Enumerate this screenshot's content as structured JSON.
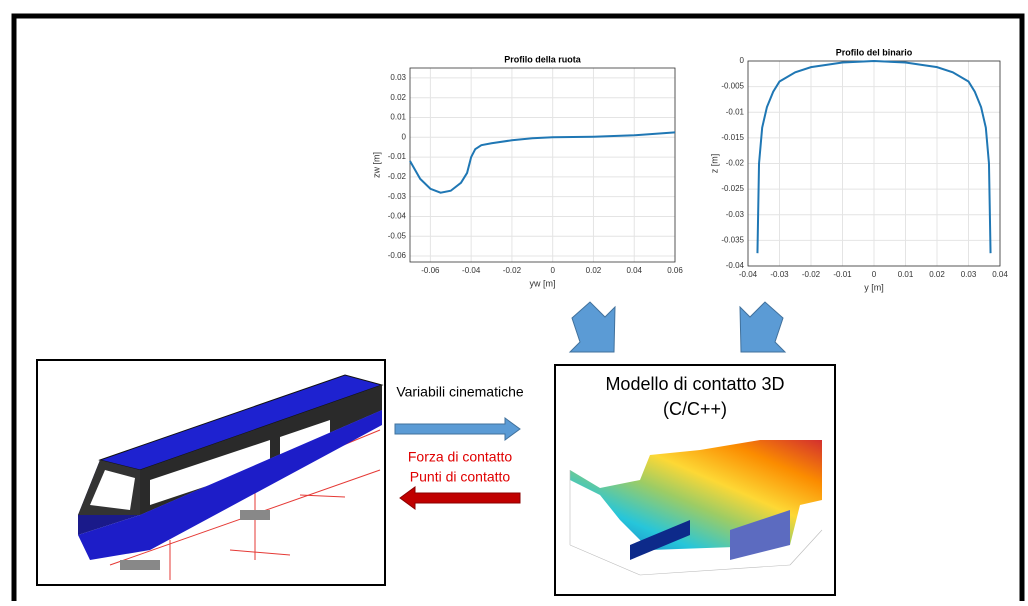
{
  "chart_data": [
    {
      "type": "line",
      "title": "Profilo della ruota",
      "x_label": "yw [m]",
      "y_label": "zw [m]",
      "x": [
        -0.07,
        -0.065,
        -0.06,
        -0.055,
        -0.05,
        -0.045,
        -0.042,
        -0.04,
        -0.038,
        -0.035,
        -0.03,
        -0.02,
        -0.01,
        0,
        0.02,
        0.04,
        0.06
      ],
      "series": [
        {
          "color": "#1f77b4",
          "values": [
            -0.012,
            -0.021,
            -0.026,
            -0.028,
            -0.027,
            -0.023,
            -0.018,
            -0.01,
            -0.006,
            -0.004,
            -0.003,
            -0.0015,
            -0.0005,
            0,
            0.0003,
            0.001,
            0.0025
          ]
        }
      ],
      "xlim": [
        -0.07,
        0.06
      ],
      "xticks": [
        -0.06,
        -0.04,
        -0.02,
        0,
        0.02,
        0.04,
        0.06
      ],
      "ylim": [
        -0.063,
        0.035
      ],
      "yticks": [
        0.03,
        0.02,
        0.01,
        0,
        -0.01,
        -0.02,
        -0.03,
        -0.04,
        -0.05,
        -0.06
      ],
      "grid": true
    },
    {
      "type": "line",
      "title": "Profilo del binario",
      "x_label": "y [m]",
      "y_label": "z [m]",
      "x": [
        -0.037,
        -0.0365,
        -0.0355,
        -0.034,
        -0.032,
        -0.03,
        -0.025,
        -0.02,
        -0.01,
        0,
        0.01,
        0.02,
        0.025,
        0.03,
        0.032,
        0.034,
        0.0355,
        0.0365,
        0.037
      ],
      "series": [
        {
          "color": "#1f77b4",
          "values": [
            -0.0375,
            -0.02,
            -0.013,
            -0.009,
            -0.006,
            -0.004,
            -0.0022,
            -0.0012,
            -0.0003,
            0,
            -0.0003,
            -0.0012,
            -0.0022,
            -0.004,
            -0.006,
            -0.009,
            -0.013,
            -0.02,
            -0.0375
          ]
        }
      ],
      "xlim": [
        -0.04,
        0.04
      ],
      "xticks": [
        -0.04,
        -0.03,
        -0.02,
        -0.01,
        0,
        0.01,
        0.02,
        0.03,
        0.04
      ],
      "ylim": [
        -0.04,
        0
      ],
      "yticks": [
        0,
        -0.005,
        -0.01,
        -0.015,
        -0.02,
        -0.025,
        -0.03,
        -0.035,
        -0.04
      ],
      "grid": true
    }
  ],
  "labels": {
    "kinematics": "Variabili cinematiche",
    "force": "Forza di contatto",
    "points": "Punti di contatto",
    "model_title": "Modello di contatto 3D",
    "model_lang": "(C/C++)"
  }
}
